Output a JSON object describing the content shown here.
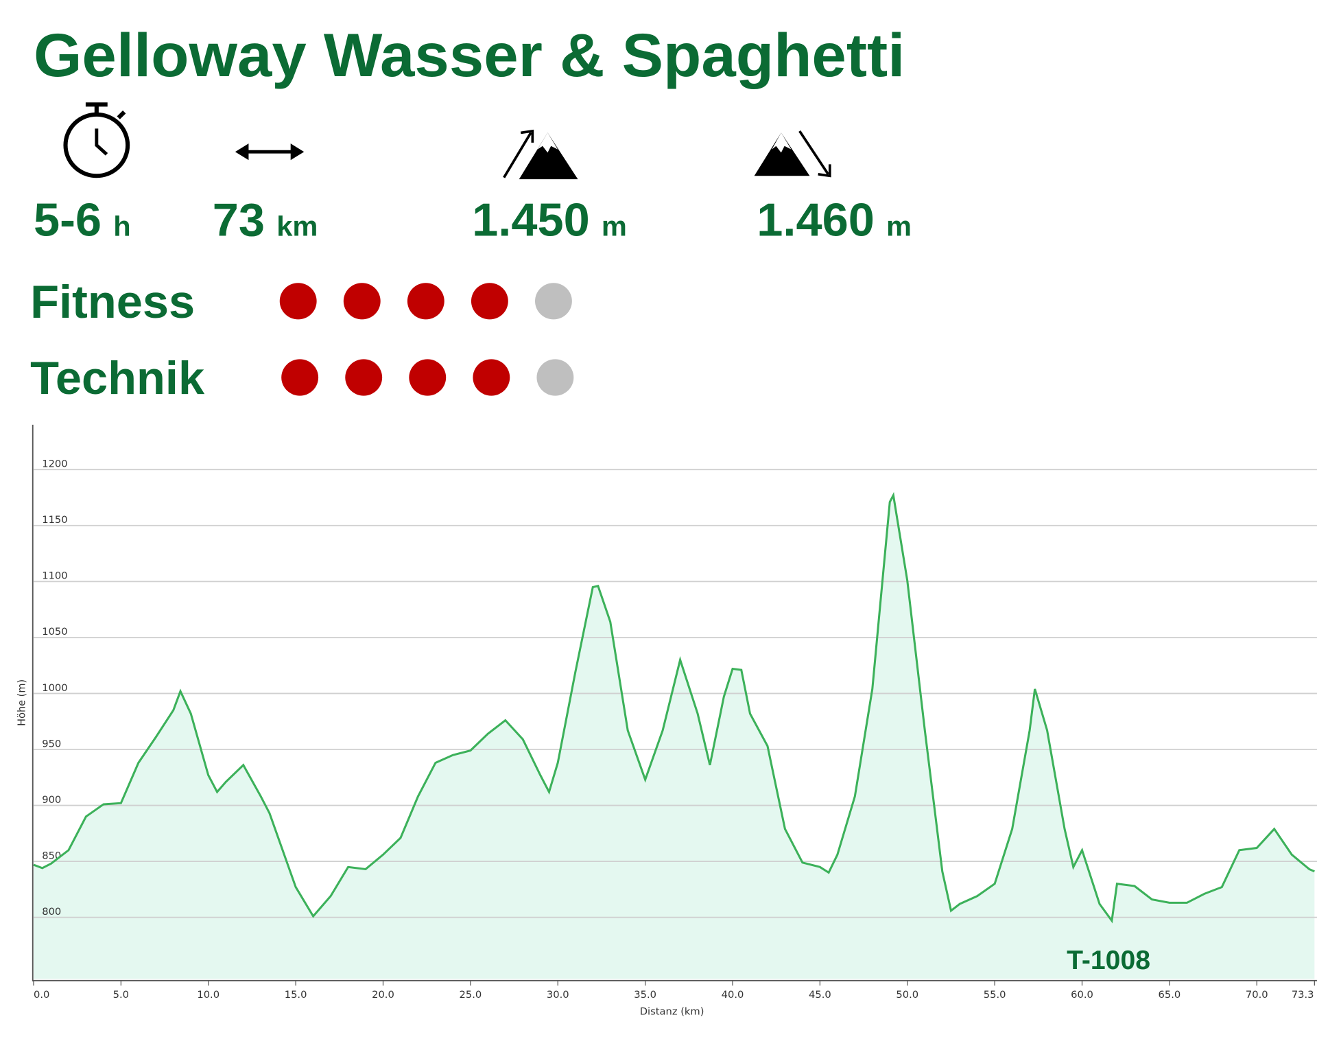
{
  "header": {
    "title": "Gelloway Wasser & Spaghetti"
  },
  "stats": [
    {
      "value": "5-6",
      "unit": "h"
    },
    {
      "value": "73",
      "unit": "km"
    },
    {
      "value": "1.450",
      "unit": "m"
    },
    {
      "value": "1.460",
      "unit": "m"
    }
  ],
  "ratings": {
    "on_color": "#c00000",
    "off_color": "#bfbfbf",
    "max": 5,
    "items": [
      {
        "label": "Fitness",
        "value": 4
      },
      {
        "label": "Technik",
        "value": 4
      }
    ]
  },
  "chart_data": {
    "type": "area",
    "color": "#3cb15a",
    "fill": "#e4f8f0",
    "x_label": "Distanz  (km)",
    "y_label": "Höhe (m)",
    "annotation": "T-1008",
    "grid": true,
    "xlim": [
      0,
      73.3
    ],
    "ylim": [
      745,
      1240
    ],
    "xticks": [
      {
        "value": 0,
        "label": "0.0"
      },
      {
        "value": 5,
        "label": "5.0"
      },
      {
        "value": 10,
        "label": "10.0"
      },
      {
        "value": 15,
        "label": "15.0"
      },
      {
        "value": 20,
        "label": "20.0"
      },
      {
        "value": 25,
        "label": "25.0"
      },
      {
        "value": 30,
        "label": "30.0"
      },
      {
        "value": 35,
        "label": "35.0"
      },
      {
        "value": 40,
        "label": "40.0"
      },
      {
        "value": 45,
        "label": "45.0"
      },
      {
        "value": 50,
        "label": "50.0"
      },
      {
        "value": 55,
        "label": "55.0"
      },
      {
        "value": 60,
        "label": "60.0"
      },
      {
        "value": 65,
        "label": "65.0"
      },
      {
        "value": 70,
        "label": "70.0"
      },
      73.3
    ],
    "yticks": [
      800,
      850,
      900,
      950,
      1000,
      1050,
      1100,
      1150,
      1200
    ],
    "x": [
      0,
      0.5,
      1,
      2,
      3,
      4,
      5,
      6,
      7,
      8,
      8.4,
      9,
      10,
      10.5,
      11,
      12,
      13,
      13.5,
      14.5,
      15,
      16,
      17,
      18,
      19,
      20,
      21,
      22,
      23,
      24,
      25,
      26,
      27,
      28,
      29,
      29.5,
      30,
      31,
      32,
      32.3,
      33,
      34,
      35,
      36,
      37,
      38,
      38.7,
      39.5,
      40,
      40.5,
      41,
      42,
      43,
      44,
      45,
      45.5,
      46,
      47,
      48,
      49,
      49.2,
      50,
      51,
      52,
      52.5,
      53,
      54,
      55,
      56,
      57,
      57.3,
      58,
      59,
      59.5,
      60,
      61,
      61.7,
      62,
      63,
      64,
      65,
      66,
      67,
      68,
      69,
      70,
      71,
      72,
      73,
      73.3
    ],
    "values": [
      847,
      844,
      848,
      860,
      890,
      901,
      902,
      938,
      961,
      985,
      1002,
      982,
      927,
      912,
      921,
      936,
      908,
      893,
      849,
      827,
      801,
      819,
      845,
      843,
      856,
      871,
      908,
      938,
      945,
      949,
      964,
      976,
      959,
      927,
      912,
      938,
      1019,
      1095,
      1096,
      1064,
      967,
      923,
      967,
      1030,
      982,
      936,
      997,
      1022,
      1021,
      982,
      953,
      879,
      849,
      845,
      840,
      856,
      908,
      1004,
      1171,
      1177,
      1101,
      967,
      841,
      806,
      812,
      819,
      830,
      879,
      967,
      1004,
      967,
      879,
      845,
      860,
      812,
      797,
      830,
      828,
      816,
      813,
      813,
      821,
      827,
      860,
      862,
      879,
      856,
      843,
      841
    ]
  }
}
